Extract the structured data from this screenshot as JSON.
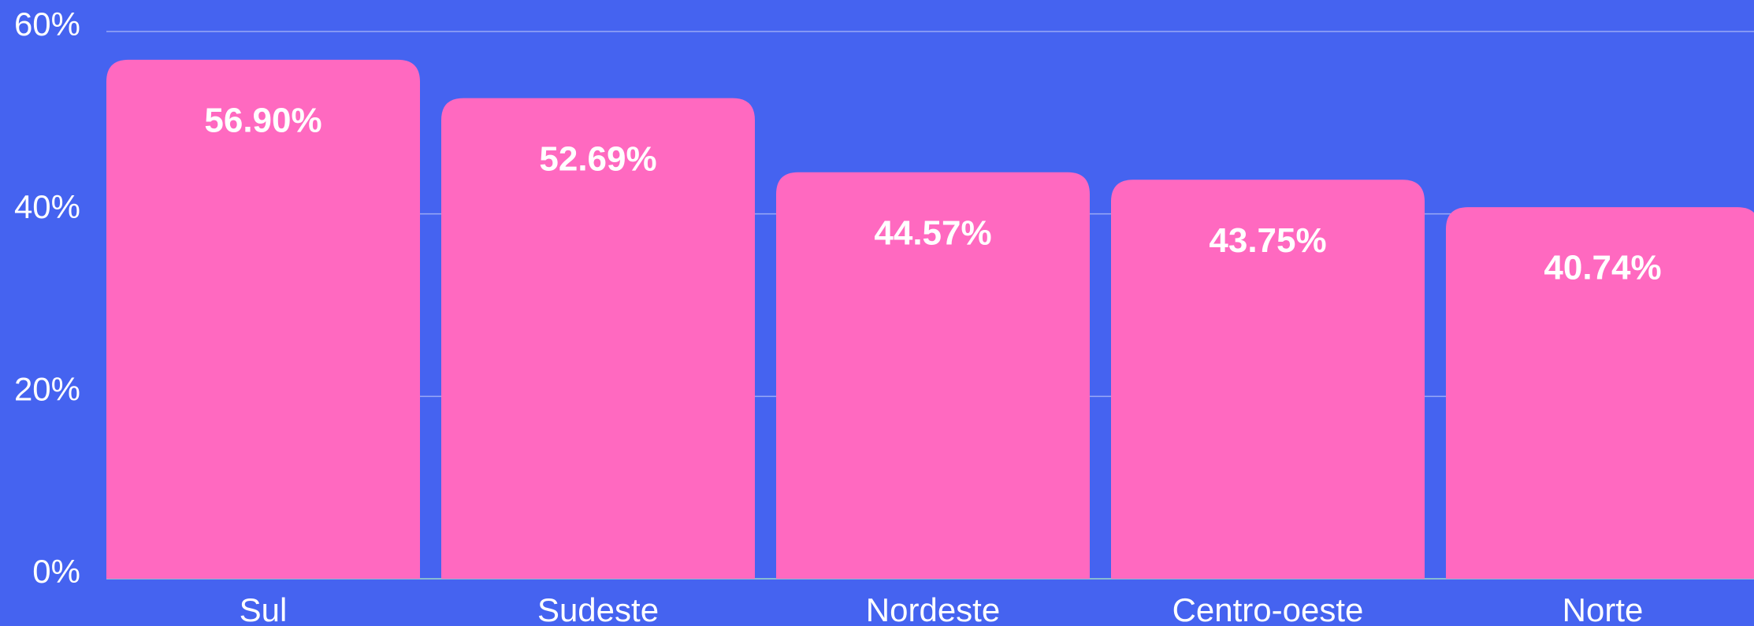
{
  "chart_data": {
    "type": "bar",
    "categories": [
      "Sul",
      "Sudeste",
      "Nordeste",
      "Centro-oeste",
      "Norte"
    ],
    "values": [
      56.9,
      52.69,
      44.57,
      43.75,
      40.74
    ],
    "value_labels": [
      "56.90%",
      "52.69%",
      "44.57%",
      "43.75%",
      "40.74%"
    ],
    "color": "#ff69c0",
    "ylim": [
      0,
      60
    ],
    "yticks": [
      {
        "value": 0,
        "label": "0%"
      },
      {
        "value": 20,
        "label": "20%"
      },
      {
        "value": 40,
        "label": "40%"
      },
      {
        "value": 60,
        "label": "60%"
      }
    ],
    "grid": true
  }
}
